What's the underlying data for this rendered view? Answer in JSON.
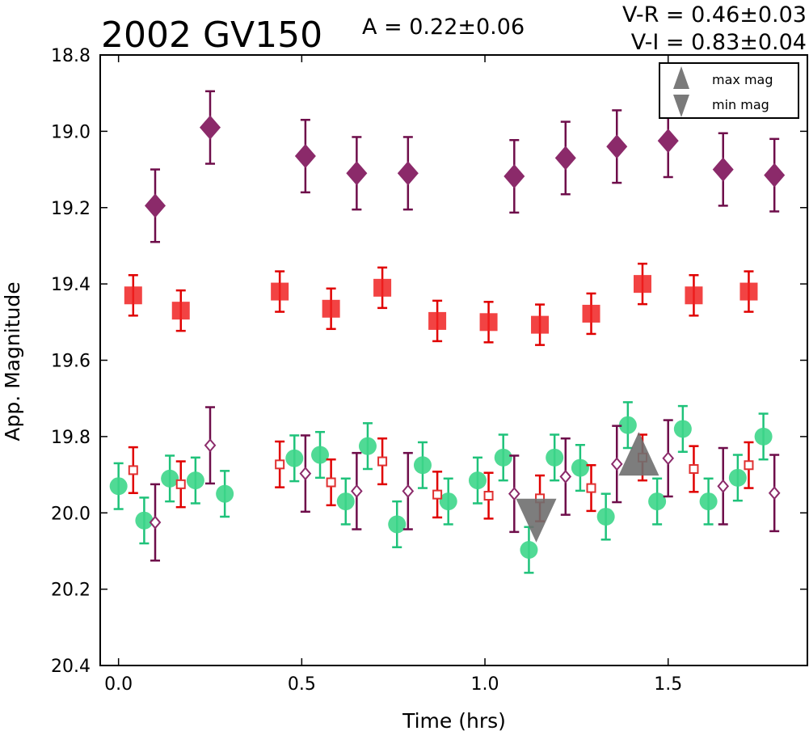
{
  "chart_data": {
    "type": "scatter",
    "title": "2002 GV150",
    "annotations": {
      "amplitude": "A  = 0.22±0.06",
      "v_r": "V-R = 0.46±0.03",
      "v_i": "V-I  = 0.83±0.04"
    },
    "xlabel": "Time (hrs)",
    "ylabel": "App. Magnitude",
    "xlim": [
      -0.05,
      1.88
    ],
    "ylim": [
      20.4,
      18.8
    ],
    "y_inverted": true,
    "grid": false,
    "legend_position": "top-right",
    "legend": [
      {
        "label": "max mag",
        "marker": "triangle-up",
        "color": "#7a7a7a"
      },
      {
        "label": "min mag",
        "marker": "triangle-down",
        "color": "#7a7a7a"
      }
    ],
    "x_ticks": [
      0.0,
      0.5,
      1.0,
      1.5
    ],
    "x_tick_labels": [
      "0.0",
      "0.5",
      "1.0",
      "1.5"
    ],
    "y_ticks": [
      18.8,
      19.0,
      19.2,
      19.4,
      19.6,
      19.8,
      20.0,
      20.2,
      20.4
    ],
    "y_tick_labels": [
      "18.8",
      "19.0",
      "19.2",
      "19.4",
      "19.6",
      "19.8",
      "20.0",
      "20.2",
      "20.4"
    ],
    "series": [
      {
        "marker": "diamond-filled",
        "color": "#8b2a6a",
        "errcolor": "#6e0d4a",
        "err": 0.095,
        "points": [
          [
            0.1,
            19.195
          ],
          [
            0.25,
            18.99
          ],
          [
            0.51,
            19.065
          ],
          [
            0.65,
            19.11
          ],
          [
            0.79,
            19.11
          ],
          [
            1.08,
            19.118
          ],
          [
            1.22,
            19.07
          ],
          [
            1.36,
            19.04
          ],
          [
            1.5,
            19.025
          ],
          [
            1.65,
            19.1
          ],
          [
            1.79,
            19.115
          ]
        ]
      },
      {
        "marker": "square-filled",
        "color": "#f02222",
        "errcolor": "#e00000",
        "err": 0.053,
        "points": [
          [
            0.04,
            19.43
          ],
          [
            0.17,
            19.47
          ],
          [
            0.44,
            19.42
          ],
          [
            0.58,
            19.465
          ],
          [
            0.72,
            19.41
          ],
          [
            0.87,
            19.497
          ],
          [
            1.01,
            19.5
          ],
          [
            1.15,
            19.507
          ],
          [
            1.29,
            19.478
          ],
          [
            1.43,
            19.4
          ],
          [
            1.57,
            19.43
          ],
          [
            1.72,
            19.42
          ]
        ]
      },
      {
        "marker": "circle-filled",
        "color": "#3dd68a",
        "errcolor": "#1fc27a",
        "err": 0.06,
        "points": [
          [
            0.0,
            19.93
          ],
          [
            0.07,
            20.02
          ],
          [
            0.14,
            19.91
          ],
          [
            0.21,
            19.915
          ],
          [
            0.29,
            19.95
          ],
          [
            0.48,
            19.857
          ],
          [
            0.55,
            19.848
          ],
          [
            0.62,
            19.97
          ],
          [
            0.68,
            19.825
          ],
          [
            0.76,
            20.03
          ],
          [
            0.83,
            19.875
          ],
          [
            0.9,
            19.97
          ],
          [
            0.98,
            19.915
          ],
          [
            1.05,
            19.855
          ],
          [
            1.12,
            20.097
          ],
          [
            1.19,
            19.855
          ],
          [
            1.26,
            19.882
          ],
          [
            1.33,
            20.01
          ],
          [
            1.39,
            19.77
          ],
          [
            1.47,
            19.97
          ],
          [
            1.54,
            19.78
          ],
          [
            1.61,
            19.97
          ],
          [
            1.69,
            19.908
          ],
          [
            1.76,
            19.8
          ]
        ]
      },
      {
        "marker": "square-open",
        "color": "#e03030",
        "errcolor": "#e00000",
        "err": 0.06,
        "points": [
          [
            0.04,
            19.888
          ],
          [
            0.17,
            19.925
          ],
          [
            0.44,
            19.873
          ],
          [
            0.58,
            19.92
          ],
          [
            0.72,
            19.865
          ],
          [
            0.87,
            19.952
          ],
          [
            1.01,
            19.955
          ],
          [
            1.15,
            19.962
          ],
          [
            1.29,
            19.935
          ],
          [
            1.43,
            19.855
          ],
          [
            1.57,
            19.885
          ],
          [
            1.72,
            19.875
          ]
        ]
      },
      {
        "marker": "diamond-open",
        "color": "#8b2a6a",
        "errcolor": "#6e0d4a",
        "err": 0.1,
        "points": [
          [
            0.1,
            20.025
          ],
          [
            0.25,
            19.823
          ],
          [
            0.51,
            19.897
          ],
          [
            0.65,
            19.943
          ],
          [
            0.79,
            19.943
          ],
          [
            1.08,
            19.95
          ],
          [
            1.22,
            19.905
          ],
          [
            1.36,
            19.872
          ],
          [
            1.5,
            19.857
          ],
          [
            1.65,
            19.93
          ],
          [
            1.79,
            19.948
          ]
        ]
      }
    ],
    "extrema_markers": [
      {
        "label": "max mag",
        "marker": "triangle-up",
        "x": 1.42,
        "y": 19.845,
        "color": "#6f6f6f"
      },
      {
        "label": "min mag",
        "marker": "triangle-down",
        "x": 1.14,
        "y": 20.02,
        "color": "#6f6f6f"
      }
    ]
  }
}
